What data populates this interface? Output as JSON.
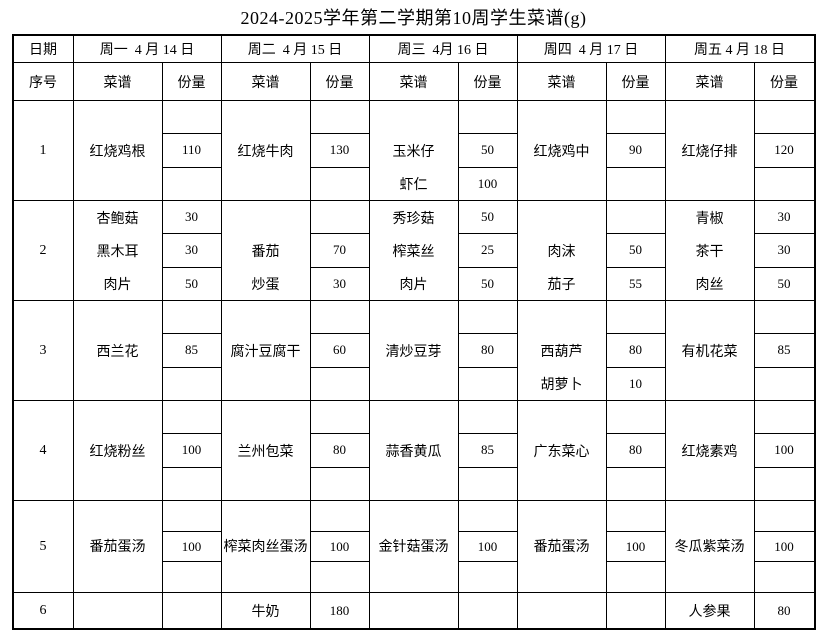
{
  "title": "2024-2025学年第二学期第10周学生菜谱(g)",
  "colors": {
    "border": "#000000",
    "text": "#000000",
    "background": "#ffffff"
  },
  "header": {
    "date_label": "日期",
    "serial_label": "序号",
    "dish_label": "菜谱",
    "portion_label": "份量",
    "days": [
      "周一  4 月 14 日",
      "周二  4 月 15 日",
      "周三  4月 16 日",
      "周四  4 月 17 日",
      "周五 4 月 18 日"
    ]
  },
  "rows": [
    {
      "serial": "1",
      "days": [
        {
          "dishes": [
            "",
            "红烧鸡根",
            ""
          ],
          "portions": [
            "",
            "110",
            ""
          ]
        },
        {
          "dishes": [
            "",
            "红烧牛肉",
            ""
          ],
          "portions": [
            "",
            "130",
            ""
          ]
        },
        {
          "dishes": [
            "",
            "玉米仔",
            "虾仁"
          ],
          "portions": [
            "",
            "50",
            "100"
          ]
        },
        {
          "dishes": [
            "",
            "红烧鸡中",
            ""
          ],
          "portions": [
            "",
            "90",
            ""
          ]
        },
        {
          "dishes": [
            "",
            "红烧仔排",
            ""
          ],
          "portions": [
            "",
            "120",
            ""
          ]
        }
      ]
    },
    {
      "serial": "2",
      "days": [
        {
          "dishes": [
            "杏鲍菇",
            "黑木耳",
            "肉片"
          ],
          "portions": [
            "30",
            "30",
            "50"
          ]
        },
        {
          "dishes": [
            "",
            "番茄",
            "炒蛋"
          ],
          "portions": [
            "",
            "70",
            "30"
          ]
        },
        {
          "dishes": [
            "秀珍菇",
            "榨菜丝",
            "肉片"
          ],
          "portions": [
            "50",
            "25",
            "50"
          ]
        },
        {
          "dishes": [
            "",
            "肉沫",
            "茄子"
          ],
          "portions": [
            "",
            "50",
            "55"
          ]
        },
        {
          "dishes": [
            "青椒",
            "茶干",
            "肉丝"
          ],
          "portions": [
            "30",
            "30",
            "50"
          ]
        }
      ]
    },
    {
      "serial": "3",
      "days": [
        {
          "dishes": [
            "",
            "西兰花",
            ""
          ],
          "portions": [
            "",
            "85",
            ""
          ]
        },
        {
          "dishes": [
            "",
            "腐汁豆腐干",
            ""
          ],
          "portions": [
            "",
            "60",
            ""
          ]
        },
        {
          "dishes": [
            "",
            "清炒豆芽",
            ""
          ],
          "portions": [
            "",
            "80",
            ""
          ]
        },
        {
          "dishes": [
            "",
            "西葫芦",
            "胡萝卜"
          ],
          "portions": [
            "",
            "80",
            "10"
          ]
        },
        {
          "dishes": [
            "",
            "有机花菜",
            ""
          ],
          "portions": [
            "",
            "85",
            ""
          ]
        }
      ]
    },
    {
      "serial": "4",
      "days": [
        {
          "dishes": [
            "",
            "红烧粉丝",
            ""
          ],
          "portions": [
            "",
            "100",
            ""
          ]
        },
        {
          "dishes": [
            "",
            "兰州包菜",
            ""
          ],
          "portions": [
            "",
            "80",
            ""
          ]
        },
        {
          "dishes": [
            "",
            "蒜香黄瓜",
            ""
          ],
          "portions": [
            "",
            "85",
            ""
          ]
        },
        {
          "dishes": [
            "",
            "广东菜心",
            ""
          ],
          "portions": [
            "",
            "80",
            ""
          ]
        },
        {
          "dishes": [
            "",
            "红烧素鸡",
            ""
          ],
          "portions": [
            "",
            "100",
            ""
          ]
        }
      ]
    },
    {
      "serial": "5",
      "days": [
        {
          "dishes": [
            "",
            "番茄蛋汤",
            ""
          ],
          "portions": [
            "",
            "100",
            ""
          ]
        },
        {
          "dishes": [
            "",
            "榨菜肉丝蛋汤",
            ""
          ],
          "portions": [
            "",
            "100",
            ""
          ]
        },
        {
          "dishes": [
            "",
            "金针菇蛋汤",
            ""
          ],
          "portions": [
            "",
            "100",
            ""
          ]
        },
        {
          "dishes": [
            "",
            "番茄蛋汤",
            ""
          ],
          "portions": [
            "",
            "100",
            ""
          ]
        },
        {
          "dishes": [
            "",
            "冬瓜紫菜汤",
            ""
          ],
          "portions": [
            "",
            "100",
            ""
          ]
        }
      ]
    },
    {
      "serial": "6",
      "single": true,
      "days": [
        {
          "dishes": [
            ""
          ],
          "portions": [
            ""
          ]
        },
        {
          "dishes": [
            "牛奶"
          ],
          "portions": [
            "180"
          ]
        },
        {
          "dishes": [
            ""
          ],
          "portions": [
            ""
          ]
        },
        {
          "dishes": [
            ""
          ],
          "portions": [
            ""
          ]
        },
        {
          "dishes": [
            "人参果"
          ],
          "portions": [
            "80"
          ]
        }
      ]
    }
  ]
}
